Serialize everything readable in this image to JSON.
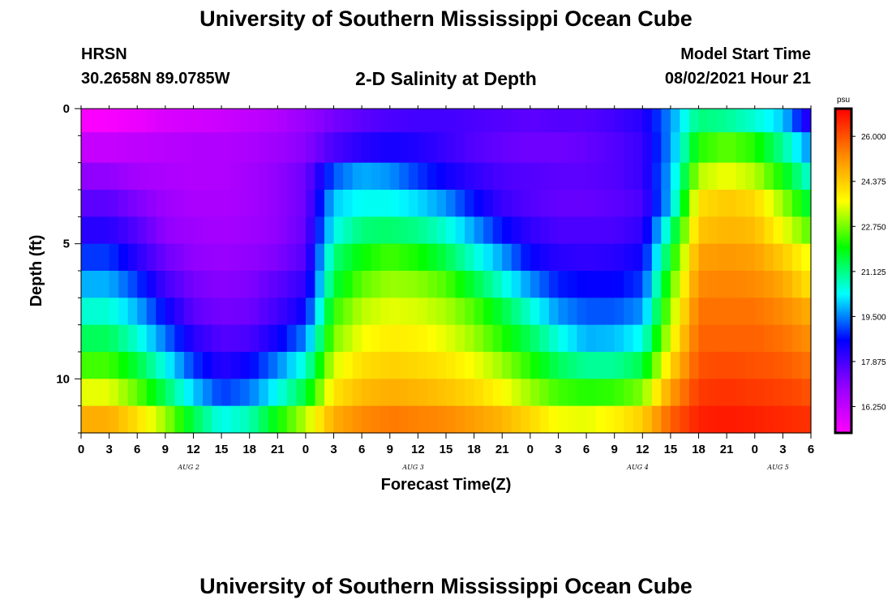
{
  "header": {
    "title": "University of Southern Mississippi Ocean Cube",
    "station": "HRSN",
    "coords": "30.2658N  89.0785W",
    "model_label": "Model Start Time",
    "model_date": "08/02/2021 Hour 21"
  },
  "footer": {
    "title": "University of Southern Mississippi Ocean Cube"
  },
  "chart_data": {
    "type": "heatmap",
    "title": "2-D Salinity at Depth",
    "xlabel": "Forecast Time(Z)",
    "ylabel": "Depth (ft)",
    "x_ticks": [
      "0",
      "3",
      "6",
      "9",
      "12",
      "15",
      "18",
      "21",
      "0",
      "3",
      "6",
      "9",
      "12",
      "15",
      "18",
      "21",
      "0",
      "3",
      "6",
      "9",
      "12",
      "15",
      "18",
      "21",
      "0",
      "3",
      "6"
    ],
    "day_labels": [
      {
        "label": "AUG  2",
        "hour": 11.5
      },
      {
        "label": "AUG  3",
        "hour": 35.5
      },
      {
        "label": "AUG  4",
        "hour": 59.5
      },
      {
        "label": "AUG  5",
        "hour": 74.5
      }
    ],
    "x_range_hours": [
      0,
      78
    ],
    "y_ticks": [
      "0",
      "5",
      "10"
    ],
    "y_range_ft": [
      0,
      12
    ],
    "colorbar": {
      "unit": "psu",
      "labels": [
        "26.000",
        "24.375",
        "22.750",
        "21.125",
        "19.500",
        "17.875",
        "16.250"
      ],
      "range": [
        15.3,
        27.0
      ],
      "colors": [
        "#ff00ff",
        "#9400ff",
        "#0000ff",
        "#00ffff",
        "#00ff00",
        "#ffff00",
        "#ff8800",
        "#ff0000"
      ]
    },
    "depth_levels_ft": [
      0.25,
      1.5,
      2.5,
      3.5,
      4.5,
      5.5,
      6.5,
      7.5,
      8.5,
      9.5,
      10.5,
      11.5
    ],
    "time_hours": [
      0,
      3,
      6,
      9,
      12,
      15,
      18,
      21,
      24,
      27,
      30,
      33,
      36,
      39,
      42,
      45,
      48,
      51,
      54,
      57,
      60,
      63,
      66,
      69,
      72,
      75,
      78
    ],
    "salinity": [
      [
        15.4,
        15.4,
        15.6,
        15.9,
        16.0,
        16.1,
        16.3,
        16.5,
        16.9,
        17.3,
        17.6,
        17.8,
        17.9,
        17.9,
        17.8,
        17.7,
        17.6,
        17.7,
        17.7,
        17.9,
        18.2,
        19.6,
        21.2,
        21.0,
        20.6,
        20.0,
        18.0
      ],
      [
        16.2,
        16.2,
        16.3,
        16.4,
        16.5,
        16.5,
        16.6,
        16.8,
        17.1,
        17.8,
        18.2,
        18.4,
        18.3,
        18.0,
        17.7,
        17.5,
        17.4,
        17.4,
        17.5,
        17.7,
        18.0,
        19.6,
        22.2,
        22.6,
        22.2,
        21.0,
        19.5
      ],
      [
        17.0,
        17.0,
        16.7,
        16.6,
        16.5,
        16.5,
        16.7,
        17.0,
        17.4,
        19.2,
        19.8,
        19.6,
        19.0,
        18.5,
        18.1,
        17.8,
        17.7,
        17.6,
        17.6,
        17.7,
        18.0,
        19.8,
        23.2,
        23.6,
        23.2,
        22.0,
        20.5
      ],
      [
        17.6,
        17.6,
        17.2,
        16.8,
        16.6,
        16.6,
        16.7,
        17.0,
        17.4,
        20.0,
        20.4,
        20.4,
        20.1,
        19.6,
        18.7,
        18.0,
        17.7,
        17.5,
        17.5,
        17.6,
        17.8,
        19.9,
        24.1,
        24.4,
        24.2,
        23.0,
        21.5
      ],
      [
        18.2,
        18.2,
        17.7,
        17.0,
        16.8,
        16.7,
        16.8,
        17.0,
        17.5,
        20.4,
        21.2,
        21.3,
        21.1,
        20.6,
        19.7,
        18.7,
        18.1,
        17.8,
        17.8,
        17.8,
        18.1,
        21.0,
        24.5,
        24.7,
        24.6,
        23.6,
        22.5
      ],
      [
        19.0,
        19.0,
        18.2,
        17.4,
        17.0,
        16.9,
        17.0,
        17.2,
        17.7,
        21.2,
        22.0,
        22.4,
        22.1,
        21.5,
        20.6,
        19.7,
        18.6,
        18.2,
        18.1,
        18.2,
        18.5,
        21.8,
        25.0,
        25.1,
        25.0,
        24.4,
        23.5
      ],
      [
        19.8,
        19.8,
        19.0,
        17.9,
        17.3,
        17.1,
        17.2,
        17.6,
        18.1,
        21.6,
        22.6,
        23.0,
        22.9,
        22.5,
        21.6,
        20.6,
        19.6,
        18.8,
        18.6,
        18.6,
        19.0,
        22.5,
        25.3,
        25.4,
        25.3,
        24.9,
        24.0
      ],
      [
        20.6,
        20.6,
        19.8,
        18.6,
        17.6,
        17.3,
        17.4,
        17.9,
        18.6,
        22.3,
        23.2,
        23.5,
        23.4,
        23.1,
        22.5,
        21.6,
        20.6,
        19.6,
        19.2,
        19.2,
        19.6,
        23.0,
        25.6,
        25.6,
        25.6,
        25.3,
        24.8
      ],
      [
        21.4,
        21.4,
        20.6,
        19.4,
        18.2,
        17.7,
        17.8,
        18.5,
        19.5,
        22.8,
        23.6,
        23.9,
        23.8,
        23.5,
        23.0,
        22.2,
        21.4,
        20.5,
        19.8,
        19.9,
        20.4,
        23.5,
        25.8,
        25.8,
        25.8,
        25.6,
        25.2
      ],
      [
        22.4,
        22.4,
        21.6,
        20.4,
        19.0,
        18.2,
        18.6,
        19.5,
        20.6,
        23.4,
        24.1,
        24.3,
        24.2,
        24.0,
        23.6,
        23.0,
        22.2,
        21.4,
        21.0,
        21.0,
        21.5,
        24.2,
        26.0,
        26.1,
        26.0,
        25.9,
        25.6
      ],
      [
        23.5,
        23.5,
        22.6,
        21.4,
        20.0,
        19.0,
        19.4,
        20.4,
        21.6,
        24.0,
        24.6,
        24.8,
        24.7,
        24.5,
        24.2,
        23.7,
        23.0,
        22.4,
        22.2,
        22.3,
        22.8,
        25.0,
        26.3,
        26.4,
        26.3,
        26.2,
        26.0
      ],
      [
        24.8,
        24.8,
        24.1,
        23.0,
        21.5,
        20.4,
        20.8,
        22.0,
        23.2,
        24.8,
        25.3,
        25.5,
        25.4,
        25.3,
        25.0,
        24.7,
        24.2,
        23.6,
        23.5,
        23.8,
        24.3,
        25.8,
        26.6,
        26.7,
        26.6,
        26.5,
        26.4
      ]
    ]
  }
}
